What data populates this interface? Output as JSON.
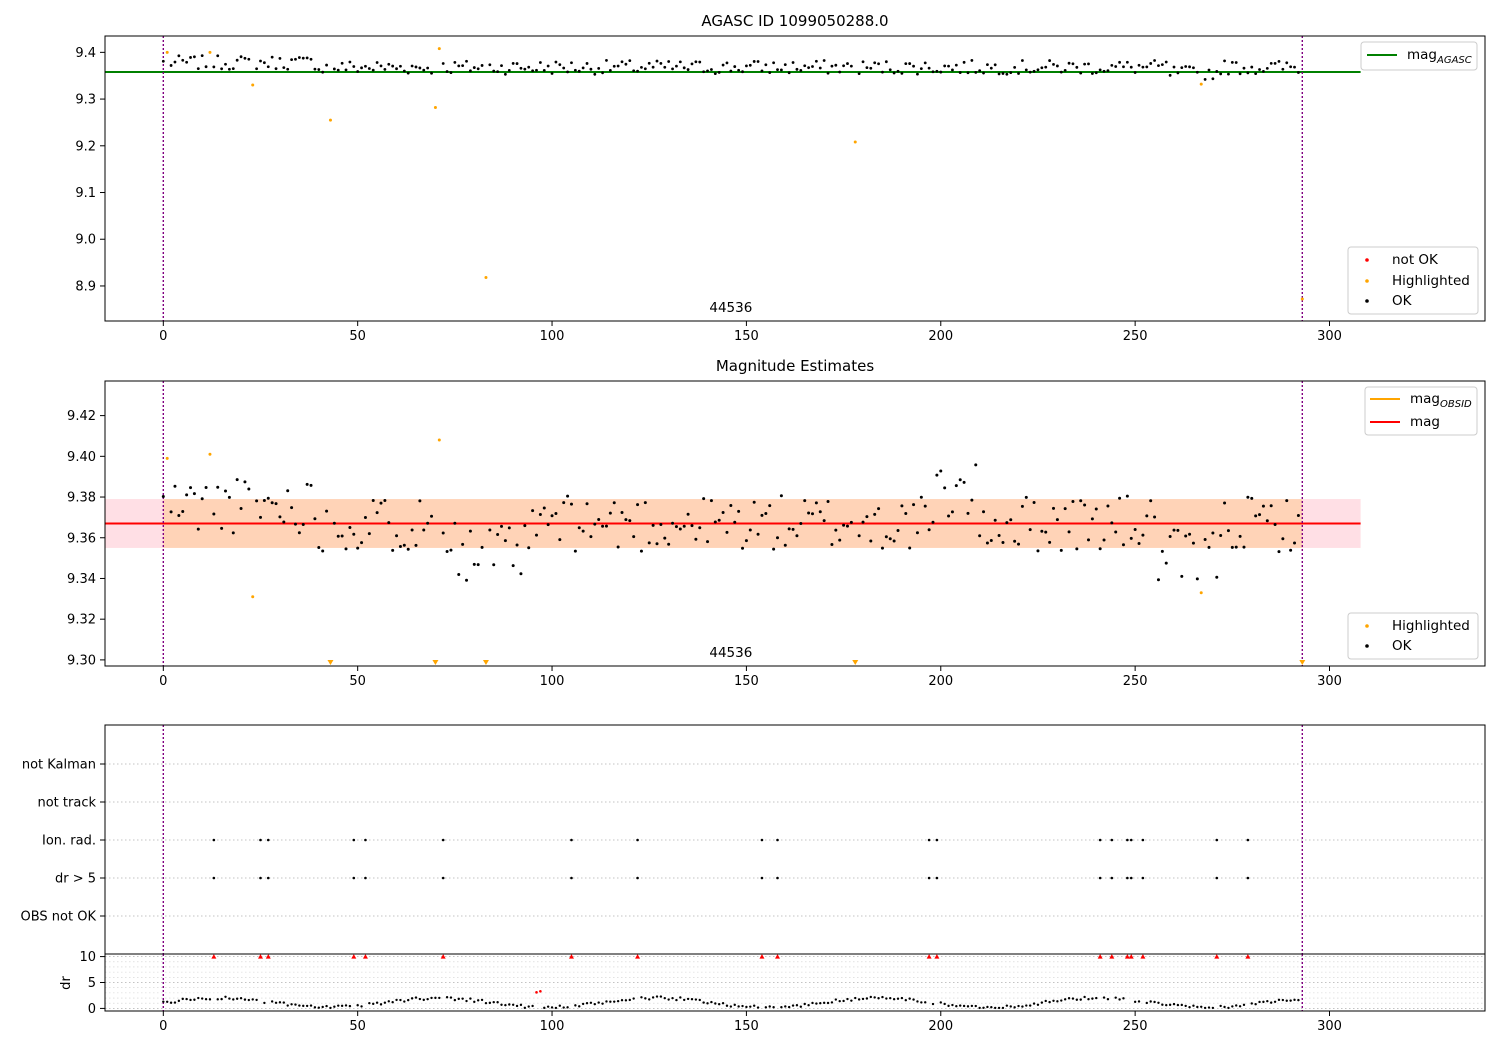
{
  "chart_data": [
    {
      "type": "scatter",
      "title": "AGASC ID 1099050288.0",
      "xlim": [
        -15,
        340
      ],
      "ylim": [
        8.825,
        9.435
      ],
      "xticks": [
        0,
        50,
        100,
        150,
        200,
        250,
        300
      ],
      "yticks": [
        8.9,
        9.0,
        9.1,
        9.2,
        9.3,
        9.4
      ],
      "ytick_labels": [
        "8.9",
        "9.0",
        "9.1",
        "9.2",
        "9.3",
        "9.4"
      ],
      "xtick_labels": [
        "0",
        "50",
        "100",
        "150",
        "200",
        "250",
        "300"
      ],
      "hline": {
        "value": 9.358,
        "label_base": "mag",
        "label_sub": "AGASC",
        "color": "#008000"
      },
      "vlines": [
        0,
        293
      ],
      "annotation": {
        "text": "44536",
        "x": 146,
        "y": 8.84
      },
      "highlighted": [
        [
          1,
          9.4
        ],
        [
          12,
          9.4
        ],
        [
          23,
          9.33
        ],
        [
          43,
          9.255
        ],
        [
          70,
          9.282
        ],
        [
          71,
          9.408
        ],
        [
          83,
          8.918
        ],
        [
          178,
          9.208
        ],
        [
          267,
          9.332
        ],
        [
          293,
          8.872
        ]
      ],
      "legend": [
        {
          "label": "not OK",
          "color": "#ff0000"
        },
        {
          "label": "Highlighted",
          "color": "#ffa500"
        },
        {
          "label": "OK",
          "color": "#000000"
        }
      ],
      "ok_series": {
        "color": "#000000",
        "note": "≈290 points between x=0 and x=292, values 9.335–9.40"
      }
    },
    {
      "type": "scatter",
      "title": "Magnitude Estimates",
      "xlim": [
        -15,
        340
      ],
      "ylim": [
        9.297,
        9.437
      ],
      "xticks": [
        0,
        50,
        100,
        150,
        200,
        250,
        300
      ],
      "xtick_labels": [
        "0",
        "50",
        "100",
        "150",
        "200",
        "250",
        "300"
      ],
      "yticks": [
        9.3,
        9.32,
        9.34,
        9.36,
        9.38,
        9.4,
        9.42
      ],
      "ytick_labels": [
        "9.30",
        "9.32",
        "9.34",
        "9.36",
        "9.38",
        "9.40",
        "9.42"
      ],
      "mag_line": {
        "value": 9.367,
        "label": "mag",
        "color": "#ff0000"
      },
      "mag_band": [
        9.355,
        9.379
      ],
      "mag_obsid_band": [
        9.355,
        9.379
      ],
      "vlines": [
        0,
        293
      ],
      "annotation": {
        "text": "44536",
        "x": 146,
        "y": 9.302
      },
      "highlighted": [
        [
          1,
          9.399
        ],
        [
          12,
          9.401
        ],
        [
          23,
          9.331
        ],
        [
          71,
          9.408
        ],
        [
          267,
          9.333
        ]
      ],
      "below_range_markers": [
        43,
        70,
        83,
        178,
        293
      ],
      "legend_top": [
        {
          "label_base": "mag",
          "label_sub": "OBSID",
          "color": "#ffa500"
        },
        {
          "label": "mag",
          "color": "#ff0000"
        }
      ],
      "legend_bottom": [
        {
          "label": "Highlighted",
          "color": "#ffa500"
        },
        {
          "label": "OK",
          "color": "#000000"
        }
      ]
    },
    {
      "type": "scatter",
      "xlim": [
        -15,
        340
      ],
      "categories": [
        "not Kalman",
        "not track",
        "Ion. rad.",
        "dr > 5",
        "OBS not OK"
      ],
      "flag_x": [
        13,
        25,
        27,
        49,
        52,
        72,
        105,
        122,
        154,
        158,
        197,
        199,
        241,
        244,
        248,
        249,
        252,
        271,
        279
      ],
      "flag_rows": [
        "Ion. rad.",
        "dr > 5"
      ],
      "vlines": [
        0,
        293
      ]
    },
    {
      "type": "scatter",
      "ylabel": "dr",
      "xlim": [
        -15,
        340
      ],
      "xticks": [
        0,
        50,
        100,
        150,
        200,
        250,
        300
      ],
      "xtick_labels": [
        "0",
        "50",
        "100",
        "150",
        "200",
        "250",
        "300"
      ],
      "yticks": [
        0,
        5,
        10
      ],
      "ytick_labels": [
        "0",
        "5",
        "10"
      ],
      "ylim": [
        -0.5,
        10.5
      ],
      "clipped_markers_x": [
        13,
        25,
        27,
        49,
        52,
        72,
        105,
        122,
        154,
        158,
        197,
        199,
        241,
        244,
        248,
        249,
        252,
        271,
        279
      ],
      "red_points": [
        [
          96,
          3.1
        ],
        [
          97,
          3.3
        ]
      ],
      "vlines": [
        0,
        293
      ]
    }
  ]
}
